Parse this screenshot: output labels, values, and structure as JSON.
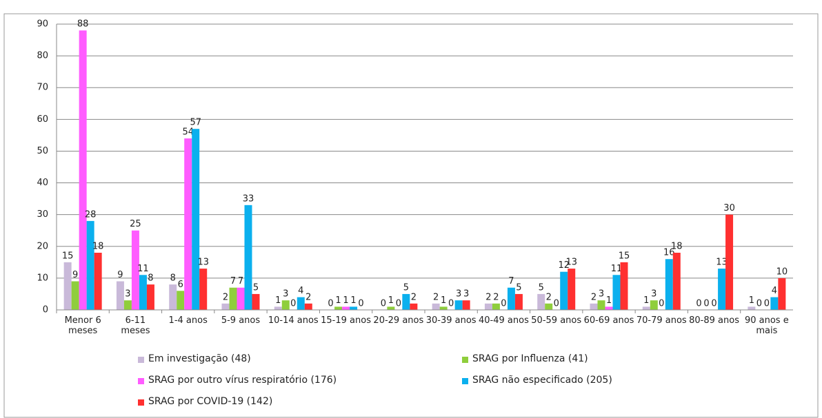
{
  "chart_data": {
    "type": "bar",
    "categories": [
      "Menor 6 meses",
      "6-11 meses",
      "1-4 anos",
      "5-9 anos",
      "10-14 anos",
      "15-19 anos",
      "20-29 anos",
      "30-39 anos",
      "40-49 anos",
      "50-59 anos",
      "60-69 anos",
      "70-79 anos",
      "80-89 anos",
      "90 anos e mais"
    ],
    "series": [
      {
        "name": "Em investigação (48)",
        "color": "#c9b9d9",
        "values": [
          15,
          9,
          8,
          2,
          1,
          0,
          0,
          2,
          2,
          5,
          2,
          1,
          0,
          1
        ]
      },
      {
        "name": "SRAG por Influenza (41)",
        "color": "#8fce3c",
        "values": [
          9,
          3,
          6,
          7,
          3,
          1,
          1,
          1,
          2,
          2,
          3,
          3,
          0,
          0
        ]
      },
      {
        "name": "SRAG por outro vírus respiratório (176)",
        "color": "#ff5cff",
        "values": [
          88,
          25,
          54,
          7,
          0,
          1,
          0,
          0,
          0,
          0,
          1,
          0,
          0,
          0
        ]
      },
      {
        "name": "SRAG não especificado (205)",
        "color": "#0bb0ee",
        "values": [
          28,
          11,
          57,
          33,
          4,
          1,
          5,
          3,
          7,
          12,
          11,
          16,
          13,
          4
        ]
      },
      {
        "name": "SRAG por COVID-19 (142)",
        "color": "#ff3030",
        "values": [
          18,
          8,
          13,
          5,
          2,
          0,
          2,
          3,
          5,
          13,
          15,
          18,
          30,
          10
        ]
      }
    ],
    "ylim": [
      0,
      90
    ],
    "yticks": [
      0,
      10,
      20,
      30,
      40,
      50,
      60,
      70,
      80,
      90
    ],
    "grid": true,
    "legend": "bottom"
  }
}
